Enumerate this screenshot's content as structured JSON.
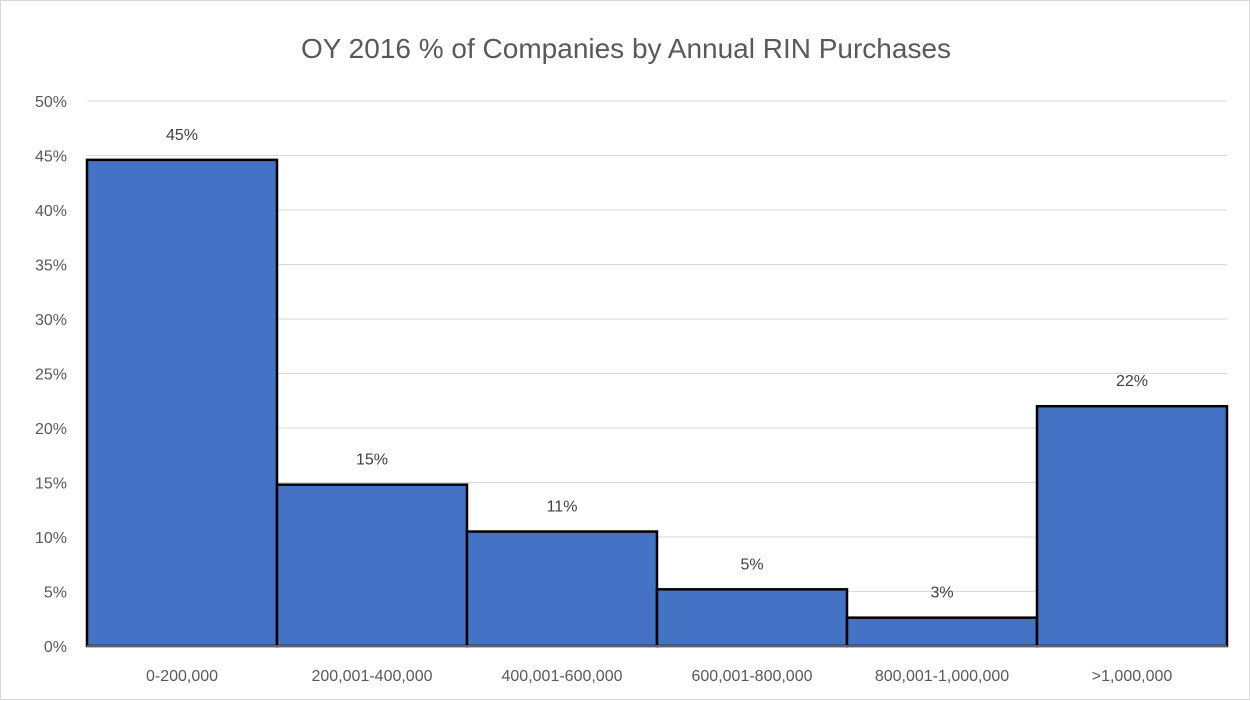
{
  "chart_data": {
    "type": "bar",
    "title": "OY 2016 % of Companies by Annual RIN Purchases",
    "xlabel": "",
    "ylabel": "",
    "categories": [
      "0-200,000",
      "200,001-400,000",
      "400,001-600,000",
      "600,001-800,000",
      "800,001-1,000,000",
      ">1,000,000"
    ],
    "values": [
      44.6,
      14.8,
      10.5,
      5.2,
      2.6,
      22.0
    ],
    "data_labels": [
      "45%",
      "15%",
      "11%",
      "5%",
      "3%",
      "22%"
    ],
    "ylim": [
      0,
      50
    ],
    "y_ticks": [
      0,
      5,
      10,
      15,
      20,
      25,
      30,
      35,
      40,
      45,
      50
    ],
    "y_tick_labels": [
      "0%",
      "5%",
      "10%",
      "15%",
      "20%",
      "25%",
      "30%",
      "35%",
      "40%",
      "45%",
      "50%"
    ],
    "grid": true,
    "legend": "none",
    "bar_color": "#4472C4",
    "bar_outline_color": "#000000"
  }
}
